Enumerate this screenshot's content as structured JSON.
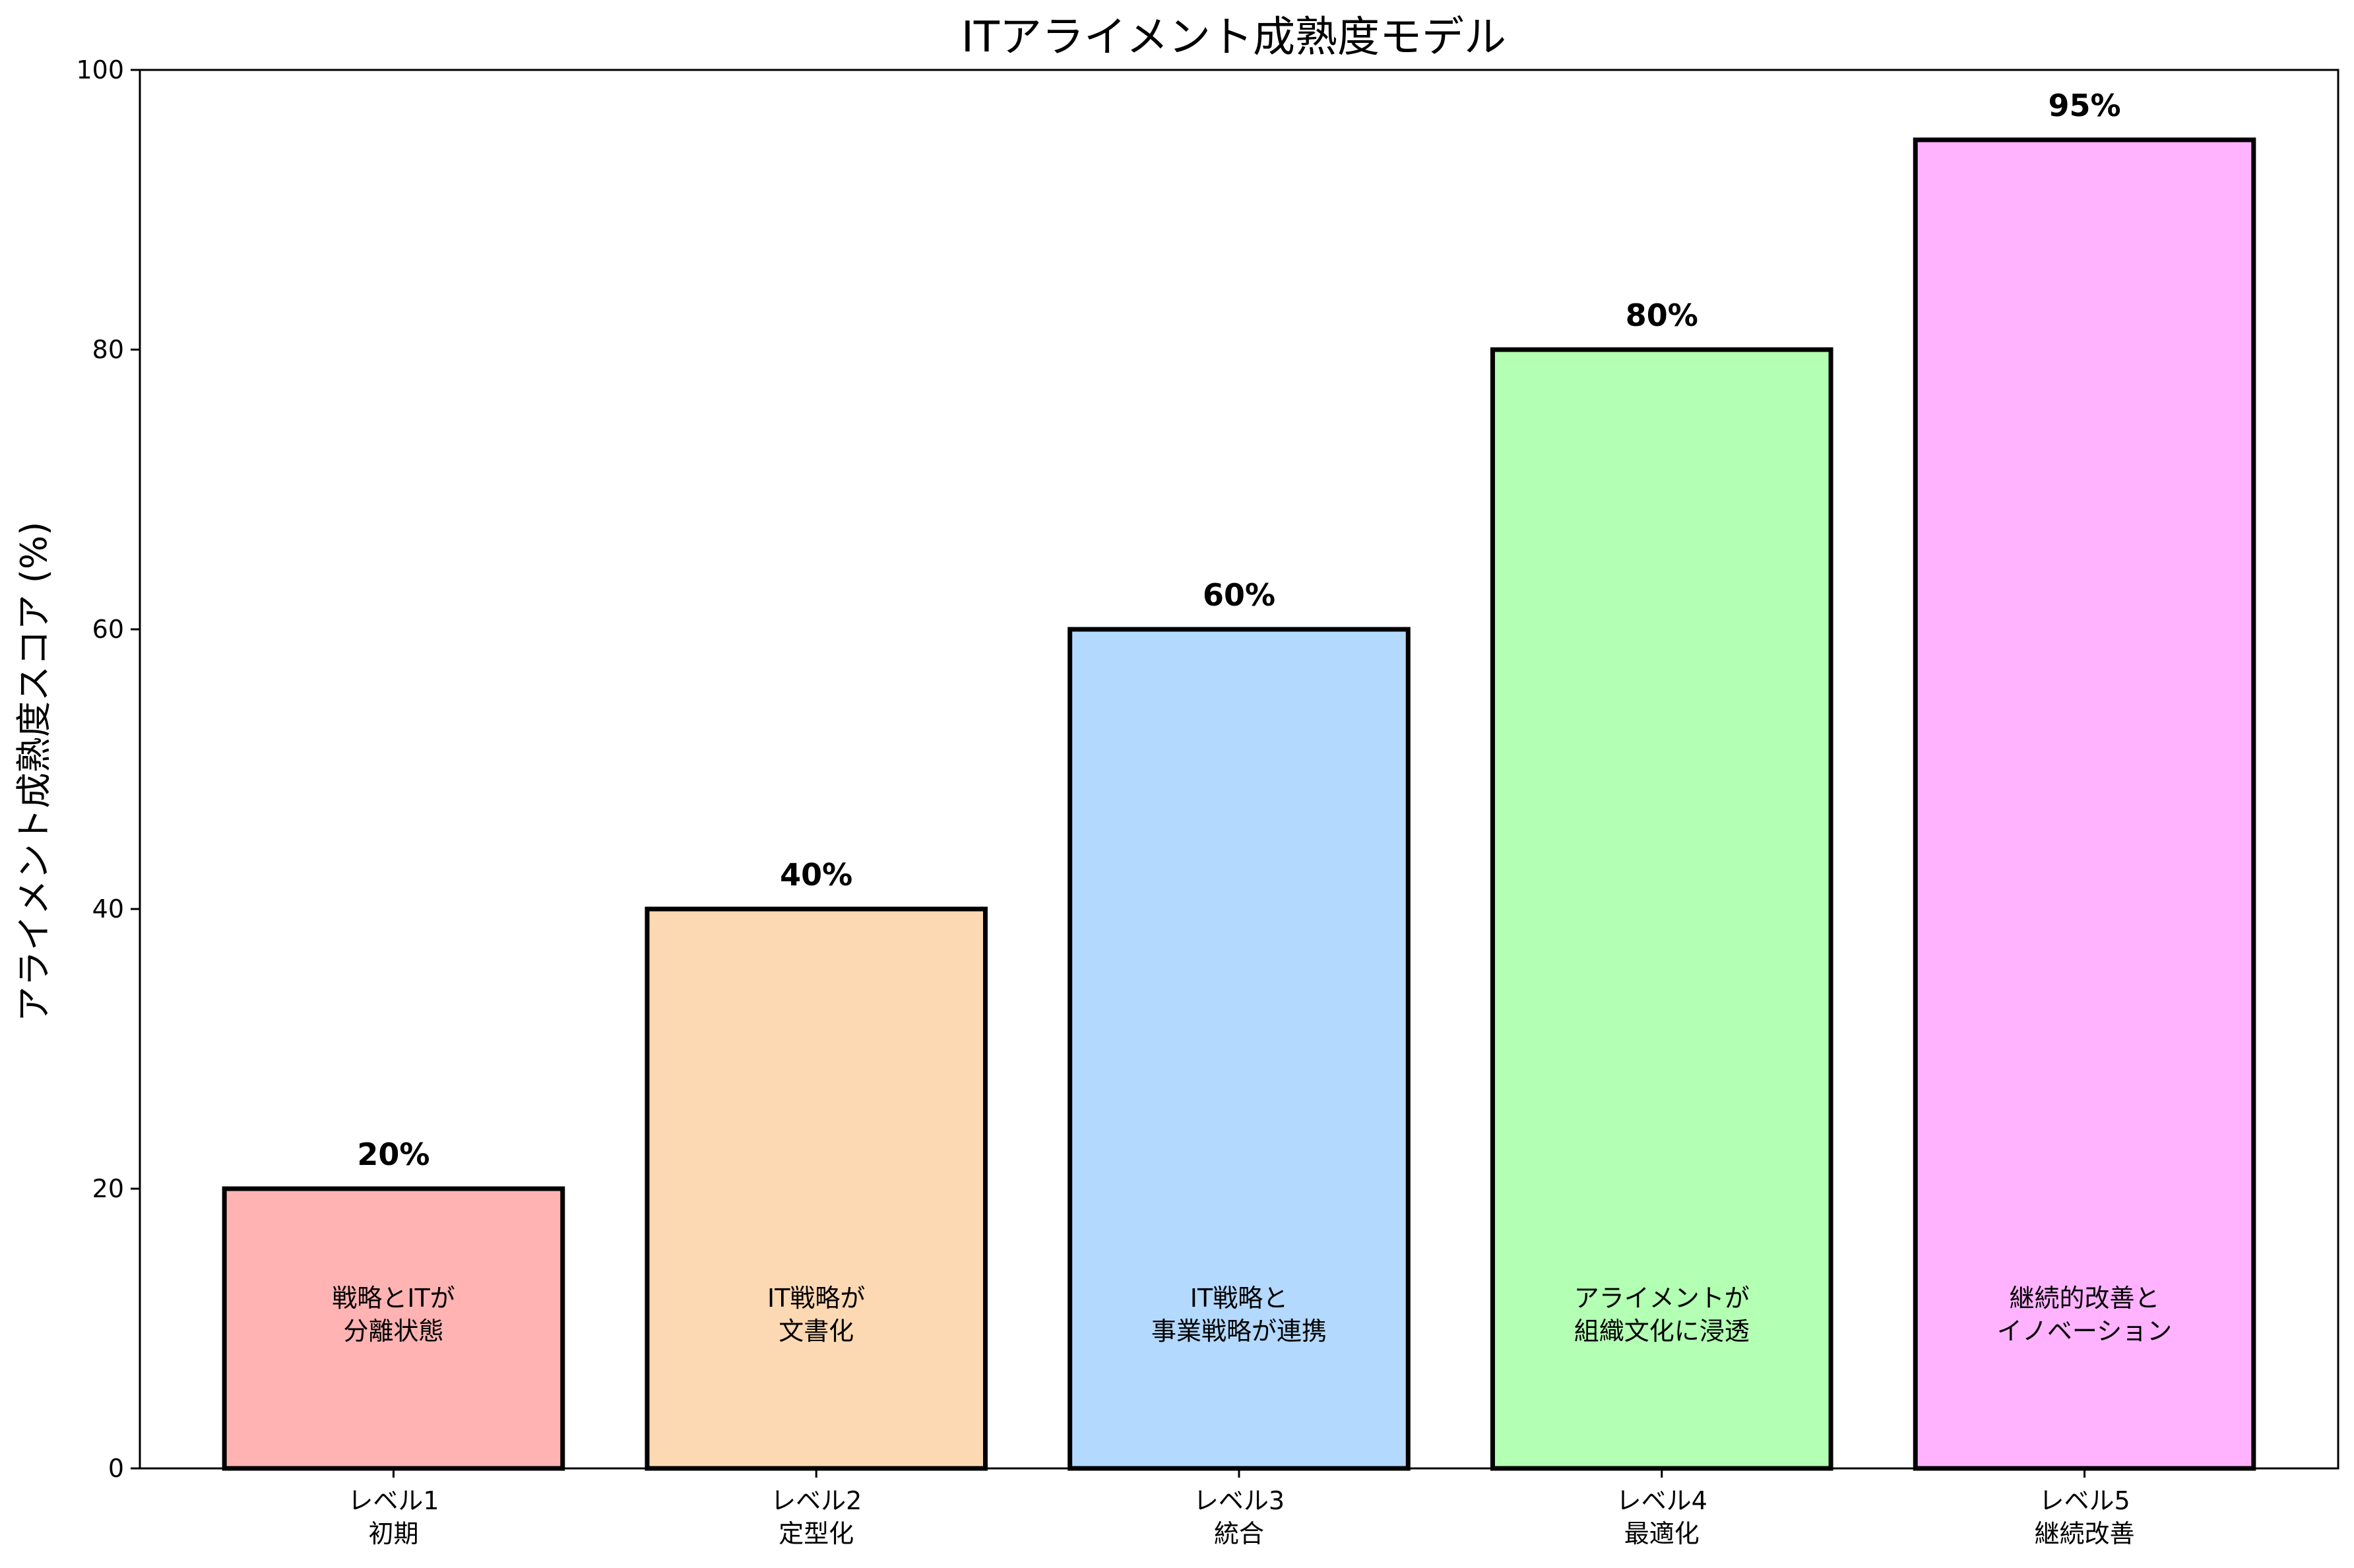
{
  "chart_data": {
    "type": "bar",
    "title": "ITアライメント成熟度モデル",
    "xlabel": "",
    "ylabel": "アライメント成熟度スコア (%)",
    "ylim": [
      0,
      100
    ],
    "yticks": [
      0,
      20,
      40,
      60,
      80,
      100
    ],
    "grid": false,
    "categories": [
      [
        "レベル1",
        "初期"
      ],
      [
        "レベル2",
        "定型化"
      ],
      [
        "レベル3",
        "統合"
      ],
      [
        "レベル4",
        "最適化"
      ],
      [
        "レベル5",
        "継続改善"
      ]
    ],
    "values": [
      20,
      40,
      60,
      80,
      95
    ],
    "value_labels": [
      "20%",
      "40%",
      "60%",
      "80%",
      "95%"
    ],
    "descriptions": [
      [
        "戦略とITが",
        "分離状態"
      ],
      [
        "IT戦略が",
        "文書化"
      ],
      [
        "IT戦略と",
        "事業戦略が連携"
      ],
      [
        "アライメントが",
        "組織文化に浸透"
      ],
      [
        "継続的改善と",
        "イノベーション"
      ]
    ],
    "colors": [
      "#ffb3b3",
      "#fdd9b3",
      "#b3d9ff",
      "#b3ffb3",
      "#ffb3ff"
    ],
    "edge_color": "#000000"
  }
}
